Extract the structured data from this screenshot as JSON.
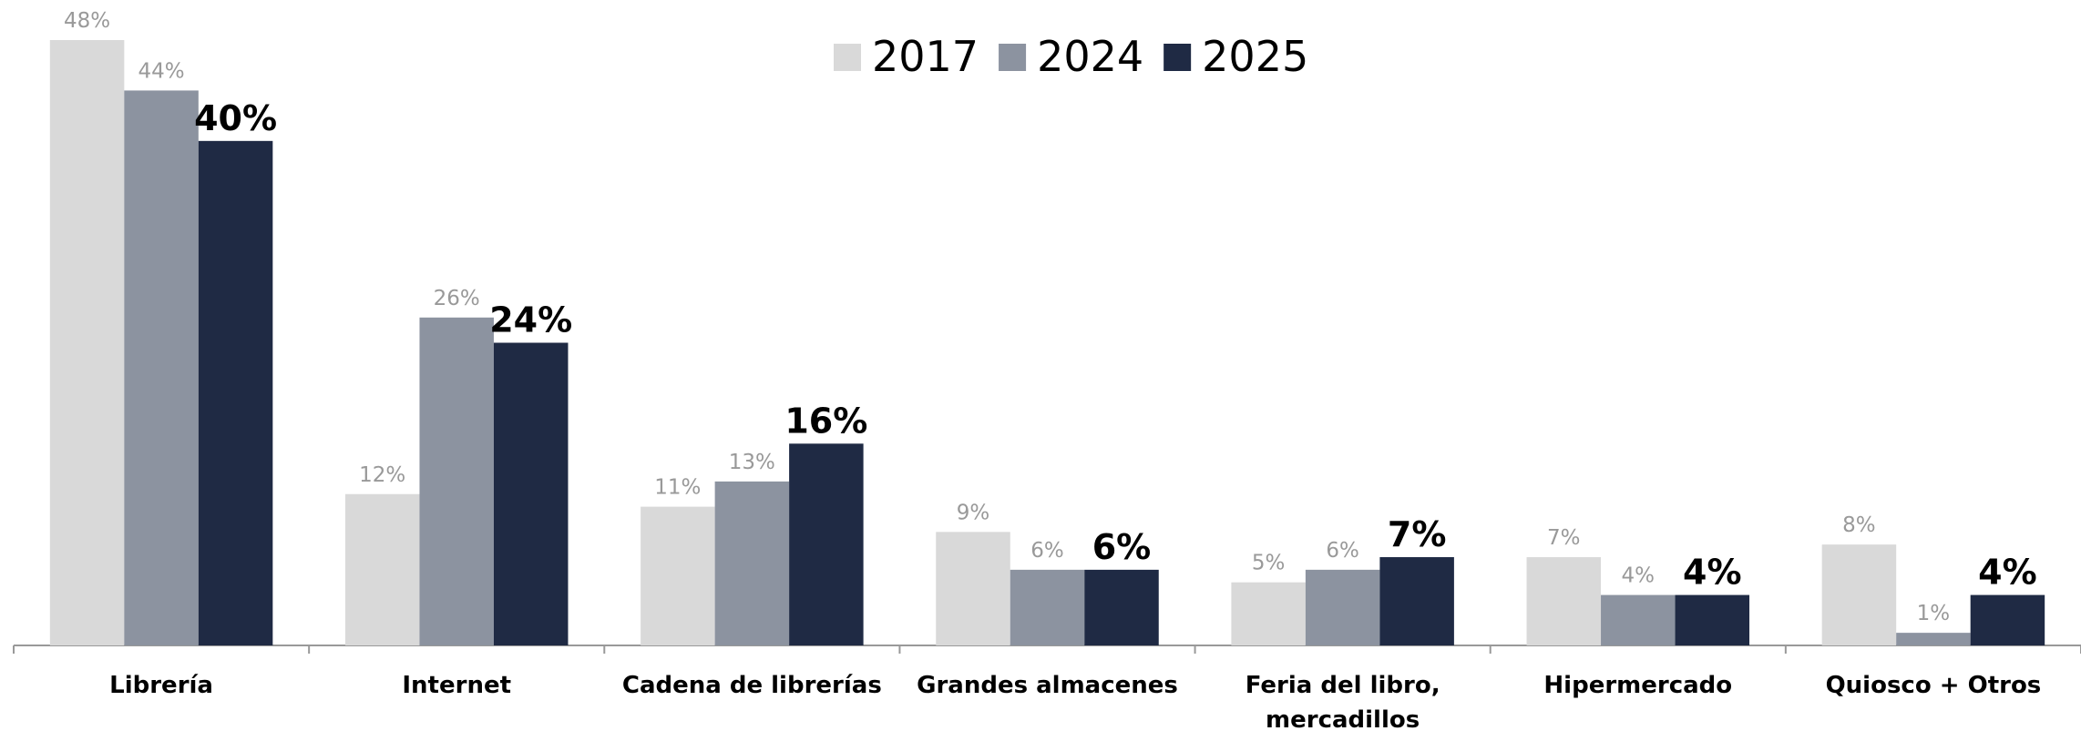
{
  "chart_data": {
    "type": "bar",
    "categories": [
      "Librería",
      "Internet",
      "Cadena de librerías",
      "Grandes almacenes",
      "Feria del libro, mercadillos",
      "Hipermercado",
      "Quiosco + Otros"
    ],
    "series": [
      {
        "name": "2017",
        "color": "#d9d9d9",
        "values": [
          48,
          12,
          11,
          9,
          5,
          7,
          8
        ],
        "value_labels": [
          "48%",
          "12%",
          "11%",
          "9%",
          "5%",
          "7%",
          "8%"
        ]
      },
      {
        "name": "2024",
        "color": "#8c93a0",
        "values": [
          44,
          26,
          13,
          6,
          6,
          4,
          1
        ],
        "value_labels": [
          "44%",
          "26%",
          "13%",
          "6%",
          "6%",
          "4%",
          "1%"
        ]
      },
      {
        "name": "2025",
        "color": "#1f2a44",
        "values": [
          40,
          24,
          16,
          6,
          7,
          4,
          4
        ],
        "value_labels": [
          "40%",
          "24%",
          "16%",
          "6%",
          "7%",
          "4%",
          "4%"
        ]
      }
    ],
    "legend": "top"
  }
}
